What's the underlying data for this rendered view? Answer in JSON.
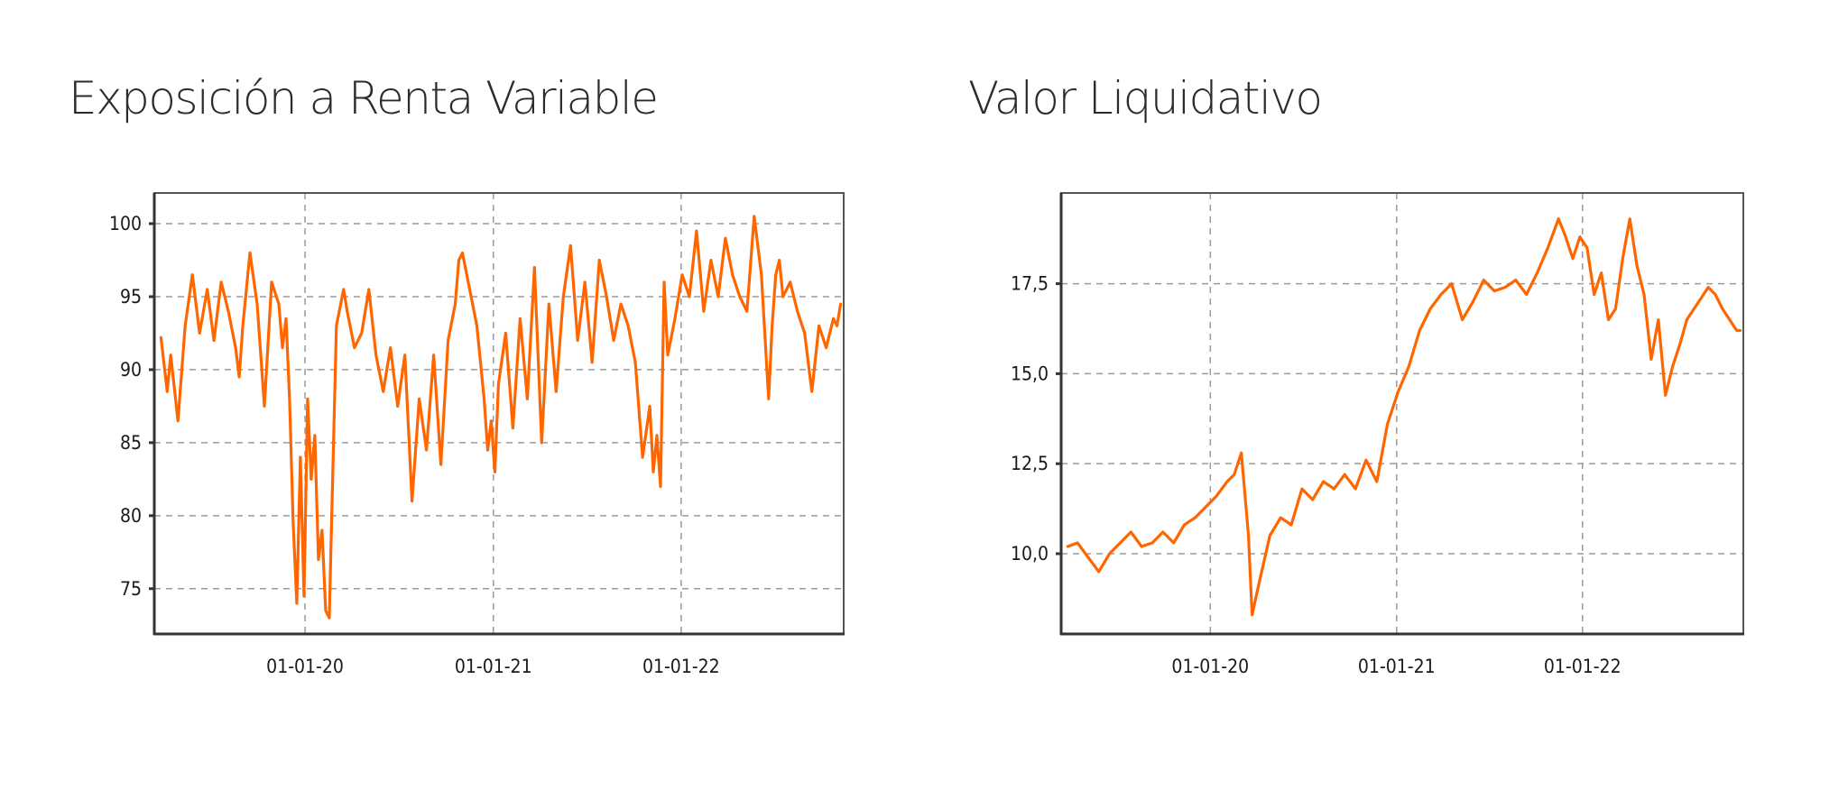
{
  "chart_data": [
    {
      "type": "line",
      "title": "Exposición a Renta Variable",
      "xlabel": "",
      "ylabel": "",
      "xlim": [
        "2019-03-14",
        "2022-11-13"
      ],
      "ylim": [
        71.9,
        102.1
      ],
      "x_ticks": [
        "2020-01-01",
        "2021-01-01",
        "2022-01-01"
      ],
      "x_tick_labels": [
        "01-01-20",
        "01-01-21",
        "01-01-22"
      ],
      "y_ticks": [
        75,
        80,
        85,
        90,
        95,
        100
      ],
      "y_tick_labels": [
        "75",
        "80",
        "85",
        "90",
        "95",
        "100"
      ],
      "grid": true,
      "legend": "none",
      "color": "#ff6600",
      "series": [
        {
          "x": [
            "2019-03-27",
            "2019-04-08",
            "2019-04-15",
            "2019-04-29",
            "2019-05-13",
            "2019-05-27",
            "2019-06-10",
            "2019-06-25",
            "2019-07-08",
            "2019-07-22",
            "2019-08-05",
            "2019-08-19",
            "2019-08-26",
            "2019-09-02",
            "2019-09-16",
            "2019-09-30",
            "2019-10-14",
            "2019-10-28",
            "2019-11-11",
            "2019-11-18",
            "2019-11-25",
            "2019-12-02",
            "2019-12-09",
            "2019-12-16",
            "2019-12-23",
            "2019-12-30",
            "2020-01-06",
            "2020-01-13",
            "2020-01-20",
            "2020-01-27",
            "2020-02-03",
            "2020-02-10",
            "2020-02-17",
            "2020-03-02",
            "2020-03-16",
            "2020-03-23",
            "2020-04-06",
            "2020-04-20",
            "2020-05-04",
            "2020-05-18",
            "2020-06-01",
            "2020-06-15",
            "2020-06-29",
            "2020-07-13",
            "2020-07-27",
            "2020-08-03",
            "2020-08-10",
            "2020-08-24",
            "2020-09-07",
            "2020-09-21",
            "2020-10-05",
            "2020-10-19",
            "2020-10-26",
            "2020-11-02",
            "2020-11-16",
            "2020-11-30",
            "2020-12-14",
            "2020-12-21",
            "2020-12-28",
            "2021-01-04",
            "2021-01-11",
            "2021-01-25",
            "2021-02-08",
            "2021-02-22",
            "2021-03-08",
            "2021-03-22",
            "2021-04-05",
            "2021-04-19",
            "2021-05-03",
            "2021-05-17",
            "2021-05-31",
            "2021-06-14",
            "2021-06-28",
            "2021-07-12",
            "2021-07-26",
            "2021-08-09",
            "2021-08-23",
            "2021-09-06",
            "2021-09-20",
            "2021-10-04",
            "2021-10-18",
            "2021-11-01",
            "2021-11-08",
            "2021-11-15",
            "2021-11-22",
            "2021-11-29",
            "2021-12-06",
            "2021-12-20",
            "2022-01-03",
            "2022-01-17",
            "2022-01-31",
            "2022-02-14",
            "2022-02-28",
            "2022-03-14",
            "2022-03-28",
            "2022-04-11",
            "2022-04-25",
            "2022-05-09",
            "2022-05-23",
            "2022-06-06",
            "2022-06-20",
            "2022-06-27",
            "2022-07-04",
            "2022-07-11",
            "2022-07-18",
            "2022-08-01",
            "2022-08-15",
            "2022-08-29",
            "2022-09-12",
            "2022-09-26",
            "2022-10-10",
            "2022-10-24",
            "2022-10-31",
            "2022-11-07"
          ],
          "values": [
            92.2,
            88.5,
            91.0,
            86.5,
            93.0,
            96.5,
            92.5,
            95.5,
            92.0,
            96.0,
            94.0,
            91.5,
            89.5,
            93.0,
            98.0,
            94.5,
            87.5,
            96.0,
            94.5,
            91.5,
            93.5,
            88.0,
            79.5,
            74.0,
            84.0,
            74.5,
            88.0,
            82.5,
            85.5,
            77.0,
            79.0,
            73.5,
            73.0,
            93.0,
            95.5,
            94.0,
            91.5,
            92.5,
            95.5,
            91.0,
            88.5,
            91.5,
            87.5,
            91.0,
            81.0,
            84.5,
            88.0,
            84.5,
            91.0,
            83.5,
            92.0,
            94.5,
            97.5,
            98.0,
            95.5,
            93.0,
            88.0,
            84.5,
            86.5,
            83.0,
            89.0,
            92.5,
            86.0,
            93.5,
            88.0,
            97.0,
            85.0,
            94.5,
            88.5,
            95.0,
            98.5,
            92.0,
            96.0,
            90.5,
            97.5,
            95.0,
            92.0,
            94.5,
            93.0,
            90.5,
            84.0,
            87.5,
            83.0,
            85.5,
            82.0,
            96.0,
            91.0,
            93.5,
            96.5,
            95.0,
            99.5,
            94.0,
            97.5,
            95.0,
            99.0,
            96.5,
            95.0,
            94.0,
            100.5,
            96.5,
            88.0,
            93.0,
            96.5,
            97.5,
            95.0,
            96.0,
            94.0,
            92.5,
            88.5,
            93.0,
            91.5,
            93.5,
            93.0,
            94.5
          ]
        }
      ]
    },
    {
      "type": "line",
      "title": "Valor Liquidativo",
      "xlabel": "",
      "ylabel": "",
      "xlim": [
        "2019-03-14",
        "2022-11-13"
      ],
      "ylim": [
        7.77,
        20.02
      ],
      "x_ticks": [
        "2020-01-01",
        "2021-01-01",
        "2022-01-01"
      ],
      "x_tick_labels": [
        "01-01-20",
        "01-01-21",
        "01-01-22"
      ],
      "y_ticks": [
        10.0,
        12.5,
        15.0,
        17.5
      ],
      "y_tick_labels": [
        "10,0",
        "12,5",
        "15,0",
        "17,5"
      ],
      "grid": true,
      "legend": "none",
      "color": "#ff6600",
      "series": [
        {
          "x": [
            "2019-03-27",
            "2019-04-15",
            "2019-05-06",
            "2019-05-27",
            "2019-06-17",
            "2019-07-08",
            "2019-07-29",
            "2019-08-19",
            "2019-09-09",
            "2019-09-30",
            "2019-10-21",
            "2019-11-11",
            "2019-12-02",
            "2019-12-23",
            "2020-01-13",
            "2020-02-03",
            "2020-02-17",
            "2020-03-02",
            "2020-03-16",
            "2020-03-23",
            "2020-04-06",
            "2020-04-27",
            "2020-05-18",
            "2020-06-08",
            "2020-06-29",
            "2020-07-20",
            "2020-08-10",
            "2020-08-31",
            "2020-09-21",
            "2020-10-12",
            "2020-11-02",
            "2020-11-23",
            "2020-12-14",
            "2021-01-04",
            "2021-01-25",
            "2021-02-15",
            "2021-03-08",
            "2021-03-29",
            "2021-04-19",
            "2021-05-10",
            "2021-05-31",
            "2021-06-21",
            "2021-07-12",
            "2021-08-02",
            "2021-08-23",
            "2021-09-13",
            "2021-10-04",
            "2021-10-25",
            "2021-11-15",
            "2021-11-29",
            "2021-12-13",
            "2021-12-27",
            "2022-01-10",
            "2022-01-24",
            "2022-02-07",
            "2022-02-21",
            "2022-03-07",
            "2022-03-21",
            "2022-04-04",
            "2022-04-18",
            "2022-05-02",
            "2022-05-16",
            "2022-05-30",
            "2022-06-13",
            "2022-06-27",
            "2022-07-11",
            "2022-07-25",
            "2022-08-08",
            "2022-08-22",
            "2022-09-05",
            "2022-09-19",
            "2022-10-03",
            "2022-10-17",
            "2022-10-31",
            "2022-11-07"
          ],
          "values": [
            10.2,
            10.3,
            9.9,
            9.5,
            10.0,
            10.3,
            10.6,
            10.2,
            10.3,
            10.6,
            10.3,
            10.8,
            11.0,
            11.3,
            11.6,
            12.0,
            12.2,
            12.8,
            10.5,
            8.3,
            9.2,
            10.5,
            11.0,
            10.8,
            11.8,
            11.5,
            12.0,
            11.8,
            12.2,
            11.8,
            12.6,
            12.0,
            13.6,
            14.5,
            15.2,
            16.2,
            16.8,
            17.2,
            17.5,
            16.5,
            17.0,
            17.6,
            17.3,
            17.4,
            17.6,
            17.2,
            17.8,
            18.5,
            19.3,
            18.8,
            18.2,
            18.8,
            18.5,
            17.2,
            17.8,
            16.5,
            16.8,
            18.2,
            19.3,
            18.0,
            17.2,
            15.4,
            16.5,
            14.4,
            15.2,
            15.8,
            16.5,
            16.8,
            17.1,
            17.4,
            17.2,
            16.8,
            16.5,
            16.2,
            16.2
          ]
        }
      ]
    }
  ]
}
